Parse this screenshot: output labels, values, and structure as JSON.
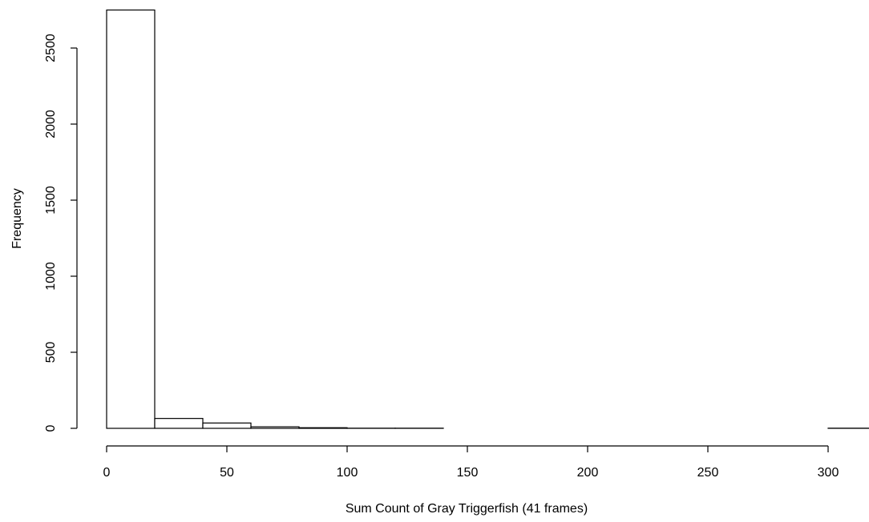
{
  "chart_data": {
    "type": "bar",
    "title": "",
    "xlabel": "Sum Count of Gray Triggerfish (41 frames)",
    "ylabel": "Frequency",
    "bin_edges": [
      0,
      20,
      40,
      60,
      80,
      100,
      120,
      140,
      160,
      180,
      200,
      220,
      240,
      260,
      280,
      300,
      320
    ],
    "values": [
      2750,
      65,
      35,
      10,
      4,
      1,
      1,
      0,
      0,
      0,
      0,
      0,
      0,
      0,
      0,
      1
    ],
    "xlim": [
      0,
      320
    ],
    "ylim": [
      0,
      2750
    ],
    "x_ticks": [
      0,
      50,
      100,
      150,
      200,
      250,
      300
    ],
    "y_ticks": [
      0,
      500,
      1000,
      1500,
      2000,
      2500
    ],
    "grid": false,
    "legend": "none",
    "bar_fill": "#ffffff",
    "bar_stroke": "#000000"
  }
}
